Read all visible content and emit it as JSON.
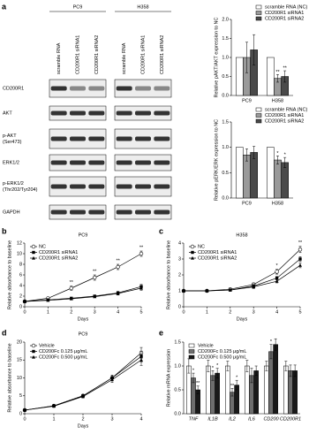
{
  "blot": {
    "panel": "a",
    "groups": [
      "PC9",
      "H358"
    ],
    "lanes": [
      "scramble RNA",
      "CD200R1 siRNA1",
      "CD200R1 siRNA2"
    ],
    "rows": [
      [
        "CD200R1"
      ],
      [
        "AKT"
      ],
      [
        "p-AKT",
        "(Ser473)"
      ],
      [
        "ERK1/2"
      ],
      [
        "p-ERK1/2",
        "(Thr202/Tyr204)"
      ],
      [
        "GAPDH"
      ]
    ]
  },
  "chart_data": [
    {
      "type": "bar",
      "ylabel": "Relative pAKT/AKT expression to NC",
      "categories": [
        "PC9",
        "H358"
      ],
      "legend": "upper right",
      "ylim": [
        0,
        2
      ],
      "yticks": [
        {
          "value": 0,
          "label": "0.0"
        },
        {
          "value": 0.5,
          "label": "0.5"
        },
        {
          "value": 1,
          "label": "1.0"
        },
        {
          "value": 1.5,
          "label": "1.5"
        },
        {
          "value": 2,
          "label": "2.0"
        }
      ],
      "series": [
        {
          "name": "scramble RNA (NC)",
          "color": "#ffffff",
          "values": [
            1.0,
            1.0
          ]
        },
        {
          "name": "CD200R1 siRNA1",
          "color": "#9a9a9a",
          "values": [
            1.0,
            0.45
          ],
          "errors": [
            0.4,
            0.1
          ]
        },
        {
          "name": "CD200R1 siRNA2",
          "color": "#4a4a4a",
          "values": [
            1.2,
            0.5
          ],
          "errors": [
            0.4,
            0.15
          ]
        }
      ],
      "annotations": [
        {
          "text": "**",
          "category": "H358",
          "series": "CD200R1 siRNA1"
        },
        {
          "text": "**",
          "category": "H358",
          "series": "CD200R1 siRNA2"
        }
      ]
    },
    {
      "type": "bar",
      "ylabel": "Relative pERK/ERK expression to NC",
      "categories": [
        "PC9",
        "H358"
      ],
      "legend": "upper right",
      "ylim": [
        0,
        1.5
      ],
      "yticks": [
        {
          "value": 0,
          "label": "0.0"
        },
        {
          "value": 0.5,
          "label": "0.5"
        },
        {
          "value": 1,
          "label": "1.0"
        },
        {
          "value": 1.5,
          "label": "1.5"
        }
      ],
      "series": [
        {
          "name": "scramble RNA (NC)",
          "color": "#ffffff",
          "values": [
            1.0,
            1.0
          ]
        },
        {
          "name": "CD200R1 siRNA1",
          "color": "#9a9a9a",
          "values": [
            0.85,
            0.75
          ],
          "errors": [
            0.12,
            0.08
          ]
        },
        {
          "name": "CD200R1 siRNA2",
          "color": "#4a4a4a",
          "values": [
            0.9,
            0.7
          ],
          "errors": [
            0.12,
            0.1
          ]
        }
      ],
      "annotations": [
        {
          "text": "*",
          "category": "H358",
          "series": "CD200R1 siRNA1"
        },
        {
          "text": "*",
          "category": "H358",
          "series": "CD200R1 siRNA2"
        }
      ]
    },
    {
      "type": "line",
      "panel": "b",
      "title": "PC9",
      "xlabel": "Days",
      "ylabel": "Relative absorbance to baseline",
      "legend": "upper left",
      "x": [
        0,
        1,
        2,
        3,
        4,
        5
      ],
      "xlim": [
        0,
        5
      ],
      "xticks": [
        0,
        1,
        2,
        3,
        4,
        5
      ],
      "ylim": [
        0,
        12
      ],
      "yticks": [
        0,
        2,
        4,
        6,
        8,
        10,
        12
      ],
      "series": [
        {
          "name": "NC",
          "color": "#000000",
          "marker": "circle-open",
          "values": [
            1,
            1.6,
            3.5,
            5.5,
            7.5,
            10
          ],
          "errors": [
            0,
            0.2,
            0.4,
            0.5,
            0.5,
            0.5
          ]
        },
        {
          "name": "CD200R1 siRNA1",
          "color": "#000000",
          "marker": "square",
          "values": [
            1,
            1.3,
            1.6,
            2.0,
            2.6,
            3.8
          ],
          "errors": [
            0,
            0.1,
            0.2,
            0.2,
            0.3,
            0.4
          ]
        },
        {
          "name": "CD200R1 siRNA2",
          "color": "#000000",
          "marker": "triangle",
          "values": [
            1,
            1.2,
            1.5,
            1.9,
            2.5,
            3.5
          ],
          "errors": [
            0,
            0.1,
            0.2,
            0.2,
            0.3,
            0.4
          ]
        }
      ],
      "annotations": [
        {
          "text": "**",
          "x": 2
        },
        {
          "text": "**",
          "x": 3
        },
        {
          "text": "**",
          "x": 4
        },
        {
          "text": "**",
          "x": 5
        }
      ]
    },
    {
      "type": "line",
      "panel": "c",
      "title": "H358",
      "xlabel": "Days",
      "ylabel": "Relative absorbance to baseline",
      "legend": "upper left",
      "x": [
        0,
        1,
        2,
        3,
        4,
        5
      ],
      "xlim": [
        0,
        5
      ],
      "xticks": [
        0,
        1,
        2,
        3,
        4,
        5
      ],
      "ylim": [
        0,
        4
      ],
      "yticks": [
        0,
        1,
        2,
        3,
        4
      ],
      "series": [
        {
          "name": "NC",
          "color": "#000000",
          "marker": "circle-open",
          "values": [
            1,
            1.0,
            1.1,
            1.4,
            2.2,
            3.6
          ],
          "errors": [
            0,
            0.05,
            0.05,
            0.1,
            0.15,
            0.2
          ]
        },
        {
          "name": "CD200R1 siRNA1",
          "color": "#000000",
          "marker": "square",
          "values": [
            1,
            1.0,
            1.05,
            1.3,
            1.8,
            3.0
          ],
          "errors": [
            0,
            0.05,
            0.05,
            0.1,
            0.1,
            0.15
          ]
        },
        {
          "name": "CD200R1 siRNA2",
          "color": "#000000",
          "marker": "triangle",
          "values": [
            1,
            1.0,
            1.05,
            1.25,
            1.6,
            2.6
          ],
          "errors": [
            0,
            0.05,
            0.05,
            0.1,
            0.1,
            0.15
          ]
        }
      ],
      "annotations": [
        {
          "text": "*",
          "x": 4
        },
        {
          "text": "**",
          "x": 5
        }
      ]
    },
    {
      "type": "line",
      "panel": "d",
      "title": "PC9",
      "xlabel": "Days",
      "ylabel": "Relative absorbance to baseline",
      "legend": "upper left",
      "x": [
        0,
        1,
        2,
        3,
        4
      ],
      "xlim": [
        0,
        4
      ],
      "xticks": [
        0,
        1,
        2,
        3,
        4
      ],
      "ylim": [
        0,
        20
      ],
      "yticks": [
        0,
        5,
        10,
        15,
        20
      ],
      "series": [
        {
          "name": "Vehicle",
          "color": "#000000",
          "marker": "circle-open",
          "values": [
            1,
            2.2,
            5,
            10,
            17
          ],
          "errors": [
            0,
            0.2,
            0.4,
            0.8,
            1.5
          ]
        },
        {
          "name": "CD200Fc 0.125 μg/mL",
          "color": "#000000",
          "marker": "square",
          "values": [
            1,
            2.2,
            5,
            10,
            16
          ],
          "errors": [
            0,
            0.2,
            0.4,
            0.8,
            1.5
          ]
        },
        {
          "name": "CD200Fc 0.500 μg/mL",
          "color": "#000000",
          "marker": "triangle",
          "values": [
            1,
            2.1,
            4.8,
            9.5,
            15
          ],
          "errors": [
            0,
            0.2,
            0.4,
            0.8,
            1.5
          ]
        }
      ],
      "annotations": []
    },
    {
      "type": "bar",
      "panel": "e",
      "ylabel": "Relative mRNA expression",
      "legend": "upper left",
      "category_font_style": "italic",
      "categories": [
        "TNF",
        "IL1B",
        "IL2",
        "IL6",
        "CD200",
        "CD200R1"
      ],
      "ylim": [
        0,
        1.5
      ],
      "yticks": [
        {
          "value": 0,
          "label": "0.0"
        },
        {
          "value": 0.5,
          "label": "0.5"
        },
        {
          "value": 1,
          "label": "1.0"
        },
        {
          "value": 1.5,
          "label": "1.5"
        }
      ],
      "series": [
        {
          "name": "Vehicle",
          "color": "#ffffff",
          "values": [
            1,
            1,
            1,
            1,
            1,
            1
          ],
          "errors": [
            0.15,
            0.12,
            0.1,
            0.12,
            0.1,
            0.1
          ]
        },
        {
          "name": "CD200Fc 0.125 μg/mL",
          "color": "#6e6e6e",
          "values": [
            0.75,
            0.8,
            0.45,
            0.8,
            1.3,
            0.9
          ],
          "errors": [
            0.1,
            0.1,
            0.08,
            0.15,
            0.15,
            0.12
          ]
        },
        {
          "name": "CD200Fc 0.500 μg/mL",
          "color": "#1a1a1a",
          "values": [
            0.5,
            0.85,
            0.6,
            0.9,
            1.45,
            0.9
          ],
          "errors": [
            0.08,
            0.1,
            0.1,
            0.1,
            0.12,
            0.12
          ]
        }
      ],
      "annotations": [
        {
          "text": "*",
          "category": "TNF",
          "series": "CD200Fc 0.125 μg/mL"
        },
        {
          "text": "**",
          "category": "TNF",
          "series": "CD200Fc 0.500 μg/mL"
        },
        {
          "text": "*",
          "category": "IL1B",
          "series": "CD200Fc 0.125 μg/mL"
        },
        {
          "text": "*",
          "category": "IL1B",
          "series": "CD200Fc 0.500 μg/mL"
        },
        {
          "text": "**",
          "category": "IL2",
          "series": "CD200Fc 0.125 μg/mL"
        },
        {
          "text": "*",
          "category": "IL2",
          "series": "CD200Fc 0.500 μg/mL"
        },
        {
          "text": "*",
          "category": "CD200",
          "series": "CD200Fc 0.125 μg/mL"
        }
      ]
    }
  ]
}
